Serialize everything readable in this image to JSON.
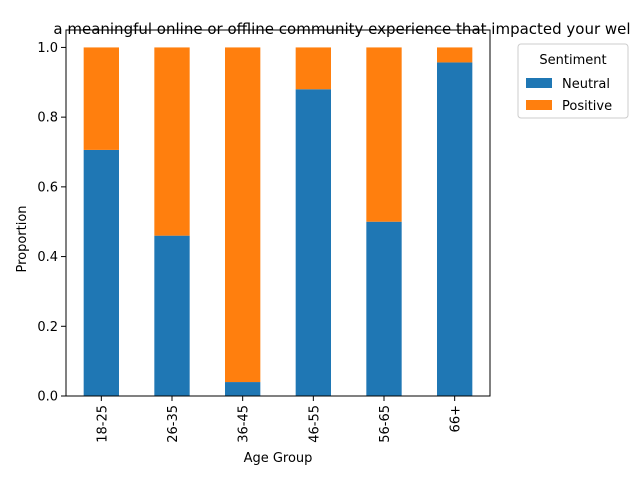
{
  "chart_data": {
    "type": "bar",
    "stacked": true,
    "title": "a meaningful online or offline community experience that impacted your wel",
    "xlabel": "Age Group",
    "ylabel": "Proportion",
    "categories": [
      "18-25",
      "26-35",
      "36-45",
      "46-55",
      "56-65",
      "66+"
    ],
    "series": [
      {
        "name": "Neutral",
        "color": "#1f77b4",
        "values": [
          0.706,
          0.46,
          0.04,
          0.88,
          0.5,
          0.957
        ]
      },
      {
        "name": "Positive",
        "color": "#ff7f0e",
        "values": [
          0.294,
          0.54,
          0.96,
          0.12,
          0.5,
          0.043
        ]
      }
    ],
    "ylim": [
      0,
      1.05
    ],
    "yticks": [
      "0.0",
      "0.2",
      "0.4",
      "0.6",
      "0.8",
      "1.0"
    ],
    "ytick_values": [
      0,
      0.2,
      0.4,
      0.6,
      0.8,
      1.0
    ],
    "legend": {
      "title": "Sentiment",
      "placement": "outside-right"
    },
    "grid": false
  }
}
